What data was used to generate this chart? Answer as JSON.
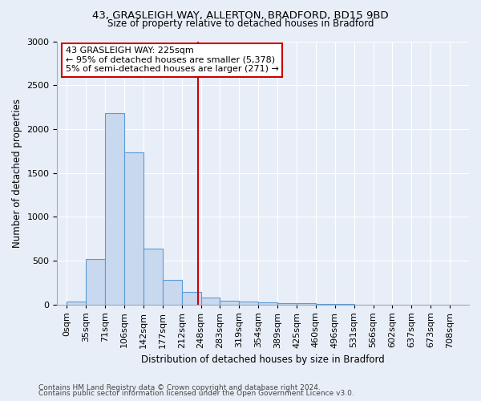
{
  "title1": "43, GRASLEIGH WAY, ALLERTON, BRADFORD, BD15 9BD",
  "title2": "Size of property relative to detached houses in Bradford",
  "xlabel": "Distribution of detached houses by size in Bradford",
  "ylabel": "Number of detached properties",
  "footer1": "Contains HM Land Registry data © Crown copyright and database right 2024.",
  "footer2": "Contains public sector information licensed under the Open Government Licence v3.0.",
  "annotation_line1": "43 GRASLEIGH WAY: 225sqm",
  "annotation_line2": "← 95% of detached houses are smaller (5,378)",
  "annotation_line3": "5% of semi-detached houses are larger (271) →",
  "bin_labels": [
    "0sqm",
    "35sqm",
    "71sqm",
    "106sqm",
    "142sqm",
    "177sqm",
    "212sqm",
    "248sqm",
    "283sqm",
    "319sqm",
    "354sqm",
    "389sqm",
    "425sqm",
    "460sqm",
    "496sqm",
    "531sqm",
    "566sqm",
    "602sqm",
    "637sqm",
    "673sqm",
    "708sqm"
  ],
  "bar_values": [
    30,
    520,
    2180,
    1730,
    640,
    280,
    140,
    80,
    40,
    30,
    20,
    15,
    10,
    8,
    6,
    0,
    0,
    0,
    0,
    0,
    0
  ],
  "bar_color": "#c8d8ef",
  "bar_edge_color": "#5b9bd5",
  "bg_color": "#e8eef7",
  "plot_bg_color": "#e8eef7",
  "grid_color": "#ffffff",
  "vline_color": "#cc0000",
  "vline_x": 6.86,
  "ylim": [
    0,
    3000
  ],
  "yticks": [
    0,
    500,
    1000,
    1500,
    2000,
    2500,
    3000
  ],
  "title1_fontsize": 9.5,
  "title2_fontsize": 8.5,
  "ylabel_fontsize": 8.5,
  "xlabel_fontsize": 8.5,
  "tick_fontsize": 8,
  "footer_fontsize": 6.5
}
